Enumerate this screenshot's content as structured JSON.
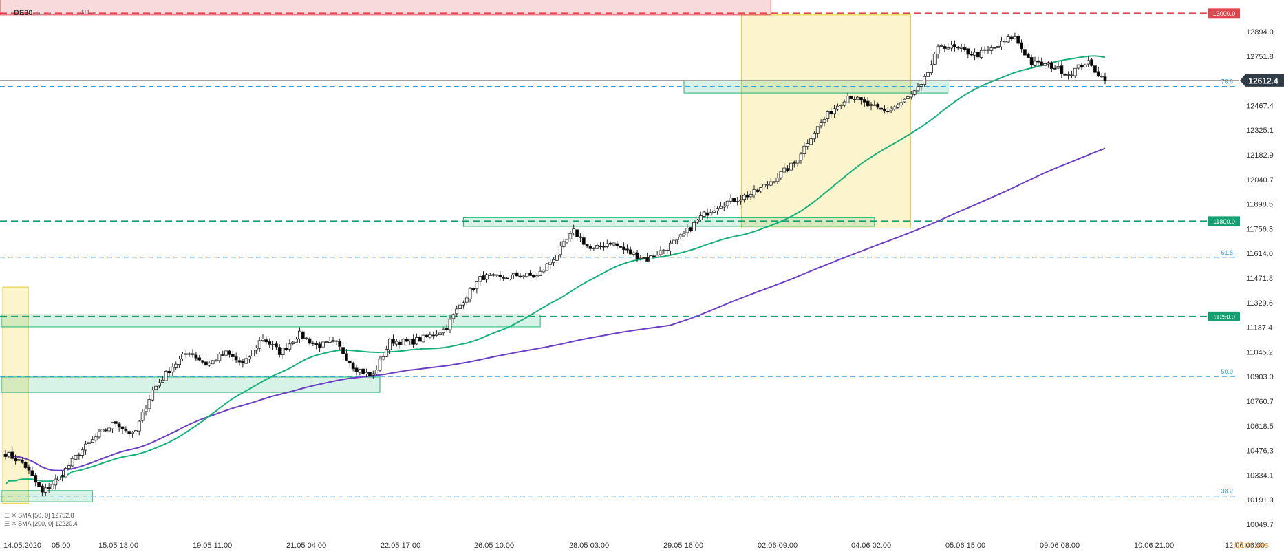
{
  "header": {
    "symbol": "DE30",
    "symbol_tag": "IND",
    "timeframe": "H1"
  },
  "timer": "01m 59s",
  "legend": {
    "sma50": "SMA [50, 0] 12752.8",
    "sma200": "SMA [200, 0] 12220.4"
  },
  "colors": {
    "up_candle": "#ffffff",
    "down_candle": "#000000",
    "sma50": "#16b07a",
    "sma200": "#6a3fc4",
    "zone_green": "#1fb574",
    "zone_red": "#e0474c",
    "highlight": "#f6e27a",
    "fib": "#3aa0e0",
    "price_badge": "#2f3b46"
  },
  "chart_data": {
    "type": "candlestick",
    "instrument": "DE30",
    "timeframe": "H1",
    "current_price": 12612.4,
    "ylim": [
      10049.7,
      13000
    ],
    "y_ticks": [
      12894.0,
      12751.8,
      12467.4,
      12325.1,
      12182.9,
      12040.7,
      11898.5,
      11756.3,
      11614.0,
      11471.8,
      11329.6,
      11187.4,
      11045.2,
      10903.0,
      10760.7,
      10618.5,
      10476.3,
      10334.1,
      10191.9,
      10049.7
    ],
    "y_tick_labels": [
      "12894.0",
      "12751.8",
      "12467.4",
      "12325.1",
      "12182.9",
      "12040.7",
      "11898.5",
      "11756.3",
      "11614.0",
      "11471.8",
      "11329.6",
      "11187.4",
      "11045.2",
      "10903.0",
      "10760.7",
      "10618.5",
      "10476.3",
      "10334.1",
      "10191.9",
      "10049.7"
    ],
    "x_tick_labels": [
      "14.05.2020",
      "05:00",
      "15.05 18:00",
      "19.05 11:00",
      "21.05 04:00",
      "22.05 17:00",
      "26.05 10:00",
      "28.05 03:00",
      "29.05 16:00",
      "02.06 09:00",
      "04.06 02:00",
      "05.06 15:00",
      "09.06 08:00",
      "10.06 21:00",
      "12.06 06:00"
    ],
    "horizontal_levels": [
      {
        "price": 13000.0,
        "label": "13000.0",
        "kind": "resistance",
        "color": "#e0474c"
      },
      {
        "price": 11800.0,
        "label": "11800.0",
        "kind": "support",
        "color": "#12a070"
      },
      {
        "price": 11250.0,
        "label": "11250.0",
        "kind": "support",
        "color": "#12a070"
      }
    ],
    "fibonacci": [
      {
        "level": "78.6",
        "price": 12578
      },
      {
        "level": "61.8",
        "price": 11592
      },
      {
        "level": "50.0",
        "price": 10903
      },
      {
        "level": "38.2",
        "price": 10214
      }
    ],
    "series": [
      {
        "name": "SMA [50, 0]",
        "last": 12752.8
      },
      {
        "name": "SMA [200, 0]",
        "last": 12220.4
      }
    ],
    "close_path": [
      10460,
      10400,
      10230,
      10330,
      10460,
      10560,
      10640,
      10560,
      10820,
      10950,
      11050,
      10970,
      11040,
      10970,
      11130,
      11040,
      11150,
      11080,
      11100,
      10960,
      10900,
      11110,
      11100,
      11130,
      11180,
      11350,
      11480,
      11470,
      11490,
      11480,
      11600,
      11740,
      11630,
      11680,
      11620,
      11580,
      11640,
      11720,
      11830,
      11900,
      11930,
      11970,
      12050,
      12130,
      12300,
      12430,
      12530,
      12470,
      12430,
      12490,
      12580,
      12820,
      12790,
      12760,
      12800,
      12870,
      12710,
      12700,
      12650,
      12720,
      12612
    ]
  }
}
